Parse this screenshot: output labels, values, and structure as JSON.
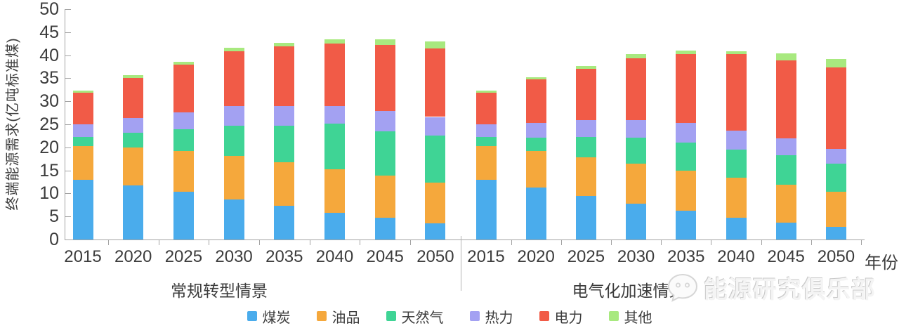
{
  "chart_data": {
    "type": "bar",
    "stacked": true,
    "title": "",
    "ylabel": "终端能源需求(亿吨标准煤)",
    "xlabel": "年份",
    "ylim": [
      0,
      50
    ],
    "yticks": [
      0,
      5,
      10,
      15,
      20,
      25,
      30,
      35,
      40,
      45,
      50
    ],
    "grid": false,
    "legend_position": "bottom",
    "series_names": [
      "煤炭",
      "油品",
      "天然气",
      "热力",
      "电力",
      "其他"
    ],
    "series_colors": [
      "#4aacec",
      "#f5a83c",
      "#3fd495",
      "#a3a1f2",
      "#f15b47",
      "#a8e97f"
    ],
    "groups": [
      {
        "label": "常规转型情景",
        "categories": [
          "2015",
          "2020",
          "2025",
          "2030",
          "2035",
          "2040",
          "2045",
          "2050"
        ],
        "series": [
          {
            "name": "煤炭",
            "values": [
              12.9,
              11.7,
              10.4,
              8.7,
              7.3,
              5.8,
              4.8,
              3.5
            ]
          },
          {
            "name": "油品",
            "values": [
              7.4,
              8.2,
              8.8,
              9.4,
              9.5,
              9.5,
              9.1,
              8.9
            ]
          },
          {
            "name": "天然气",
            "values": [
              1.9,
              3.2,
              4.7,
              6.6,
              7.9,
              9.8,
              9.6,
              10.1
            ]
          },
          {
            "name": "热力",
            "values": [
              2.8,
              3.2,
              3.7,
              4.3,
              4.2,
              3.8,
              4.4,
              4.1
            ]
          },
          {
            "name": "电力",
            "values": [
              6.9,
              8.8,
              10.3,
              11.8,
              13.0,
              13.7,
              14.3,
              14.9
            ]
          },
          {
            "name": "其他",
            "values": [
              0.4,
              0.5,
              0.6,
              0.8,
              0.8,
              0.8,
              1.2,
              1.5
            ]
          }
        ]
      },
      {
        "label": "电气化加速情景",
        "categories": [
          "2015",
          "2020",
          "2025",
          "2030",
          "2035",
          "2040",
          "2045",
          "2050"
        ],
        "series": [
          {
            "name": "煤炭",
            "values": [
              12.9,
              11.3,
              9.4,
              7.7,
              6.3,
              4.8,
              3.6,
              2.8
            ]
          },
          {
            "name": "油品",
            "values": [
              7.4,
              7.9,
              8.5,
              8.7,
              8.6,
              8.6,
              8.3,
              7.5
            ]
          },
          {
            "name": "天然气",
            "values": [
              1.9,
              2.9,
              4.4,
              5.7,
              6.2,
              6.1,
              6.4,
              6.2
            ]
          },
          {
            "name": "热力",
            "values": [
              2.8,
              3.2,
              3.6,
              3.8,
              4.2,
              4.1,
              3.7,
              3.2
            ]
          },
          {
            "name": "电力",
            "values": [
              6.9,
              9.4,
              11.1,
              13.5,
              15.0,
              16.6,
              16.8,
              17.7
            ]
          },
          {
            "name": "其他",
            "values": [
              0.4,
              0.5,
              0.7,
              0.9,
              0.7,
              0.7,
              1.6,
              1.8
            ]
          }
        ]
      }
    ]
  },
  "watermark": {
    "text": "能源研究俱乐部",
    "icon": "wechat-bubble-icon"
  }
}
